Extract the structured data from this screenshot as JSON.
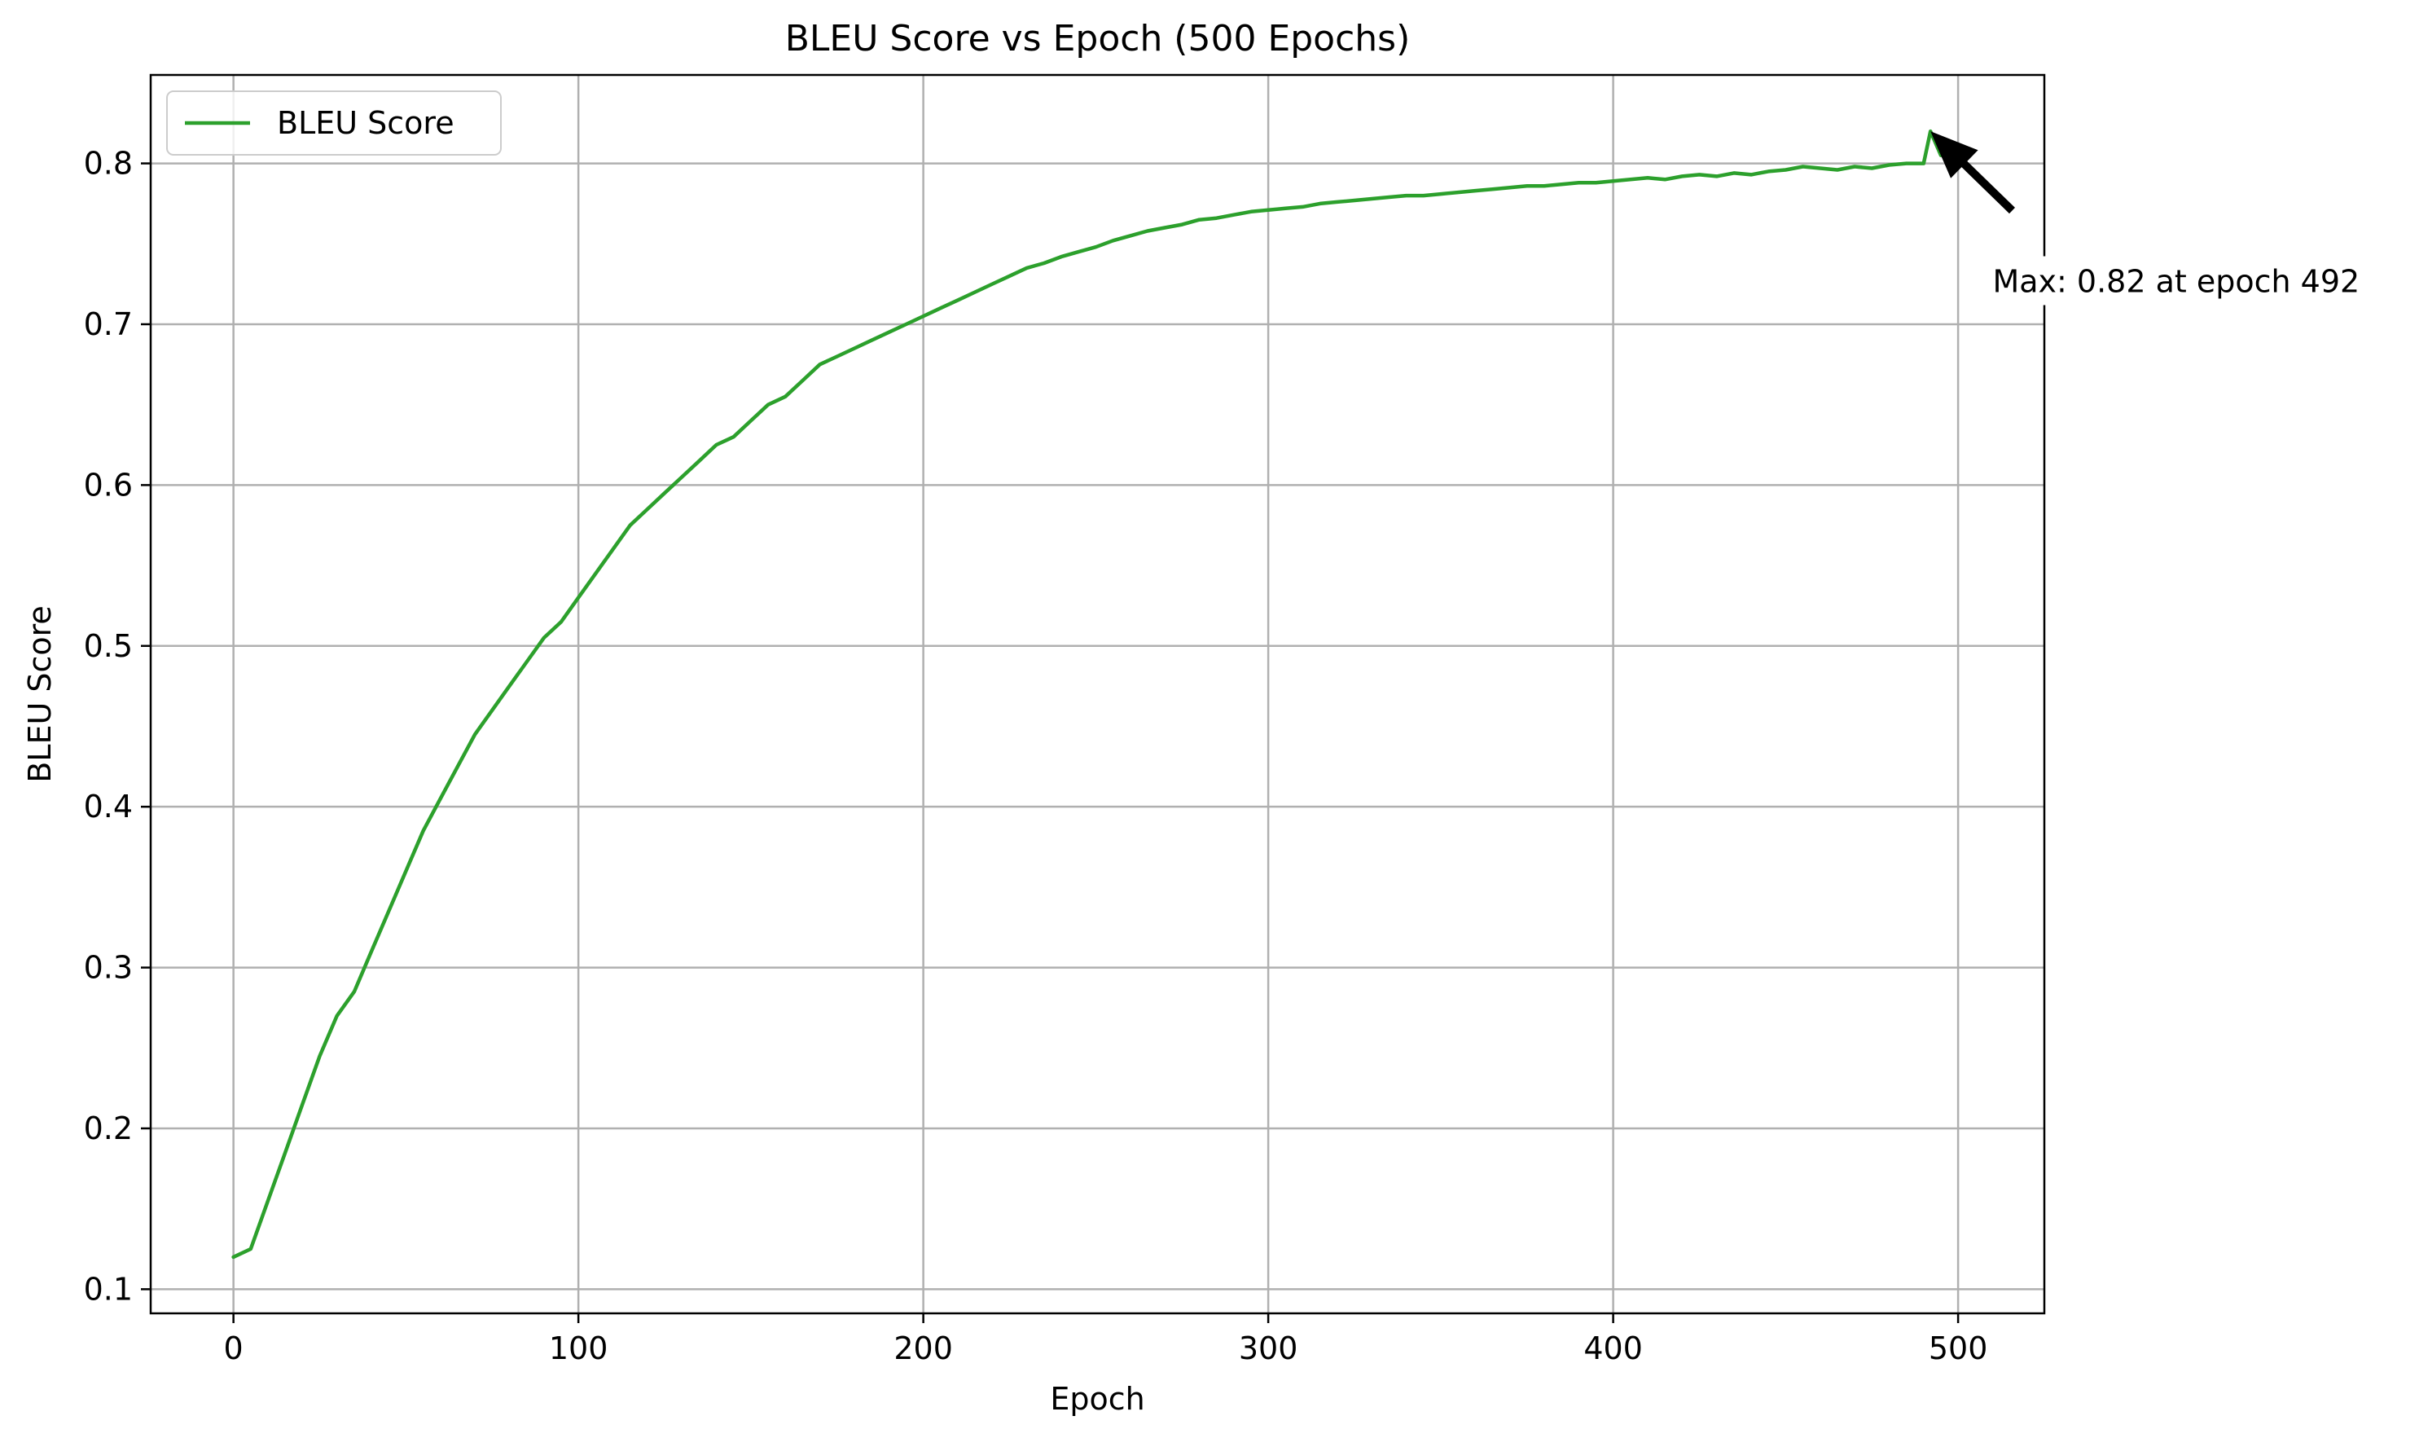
{
  "chart_data": {
    "type": "line",
    "title": "BLEU Score vs Epoch (500 Epochs)",
    "xlabel": "Epoch",
    "ylabel": "BLEU Score",
    "xlim": [
      -24,
      525
    ],
    "ylim": [
      0.085,
      0.855
    ],
    "xticks": [
      0,
      100,
      200,
      300,
      400,
      500
    ],
    "xtick_labels": [
      "0",
      "100",
      "200",
      "300",
      "400",
      "500"
    ],
    "yticks": [
      0.1,
      0.2,
      0.3,
      0.4,
      0.5,
      0.6,
      0.7,
      0.8
    ],
    "ytick_labels": [
      "0.1",
      "0.2",
      "0.3",
      "0.4",
      "0.5",
      "0.6",
      "0.7",
      "0.8"
    ],
    "grid": true,
    "legend_position": "top-left",
    "series": [
      {
        "name": "BLEU Score",
        "color": "#2ca02c",
        "x": [
          0,
          5,
          10,
          15,
          20,
          25,
          30,
          35,
          40,
          45,
          50,
          55,
          60,
          65,
          70,
          75,
          80,
          85,
          90,
          95,
          100,
          105,
          110,
          115,
          120,
          125,
          130,
          135,
          140,
          145,
          150,
          155,
          160,
          165,
          170,
          175,
          180,
          185,
          190,
          195,
          200,
          205,
          210,
          215,
          220,
          225,
          230,
          235,
          240,
          245,
          250,
          255,
          260,
          265,
          270,
          275,
          280,
          285,
          290,
          295,
          300,
          305,
          310,
          315,
          320,
          325,
          330,
          335,
          340,
          345,
          350,
          355,
          360,
          365,
          370,
          375,
          380,
          385,
          390,
          395,
          400,
          405,
          410,
          415,
          420,
          425,
          430,
          435,
          440,
          445,
          450,
          455,
          460,
          465,
          470,
          475,
          480,
          485,
          490,
          492,
          495,
          499
        ],
        "values": [
          0.12,
          0.125,
          0.155,
          0.185,
          0.215,
          0.245,
          0.27,
          0.285,
          0.31,
          0.335,
          0.36,
          0.385,
          0.405,
          0.425,
          0.445,
          0.46,
          0.475,
          0.49,
          0.505,
          0.515,
          0.53,
          0.545,
          0.56,
          0.575,
          0.585,
          0.595,
          0.605,
          0.615,
          0.625,
          0.63,
          0.64,
          0.65,
          0.655,
          0.665,
          0.675,
          0.68,
          0.685,
          0.69,
          0.695,
          0.7,
          0.705,
          0.71,
          0.715,
          0.72,
          0.725,
          0.73,
          0.735,
          0.738,
          0.742,
          0.745,
          0.748,
          0.752,
          0.755,
          0.758,
          0.76,
          0.762,
          0.765,
          0.766,
          0.768,
          0.77,
          0.771,
          0.772,
          0.773,
          0.775,
          0.776,
          0.777,
          0.778,
          0.779,
          0.78,
          0.78,
          0.781,
          0.782,
          0.783,
          0.784,
          0.785,
          0.786,
          0.786,
          0.787,
          0.788,
          0.788,
          0.789,
          0.79,
          0.791,
          0.79,
          0.792,
          0.793,
          0.792,
          0.794,
          0.793,
          0.795,
          0.796,
          0.798,
          0.797,
          0.796,
          0.798,
          0.797,
          0.799,
          0.8,
          0.8,
          0.82,
          0.805,
          0.81
        ]
      }
    ],
    "annotation": {
      "text": "Max: 0.82 at epoch 492",
      "point": [
        492,
        0.82
      ],
      "label_anchor": [
        510,
        0.72
      ]
    }
  }
}
